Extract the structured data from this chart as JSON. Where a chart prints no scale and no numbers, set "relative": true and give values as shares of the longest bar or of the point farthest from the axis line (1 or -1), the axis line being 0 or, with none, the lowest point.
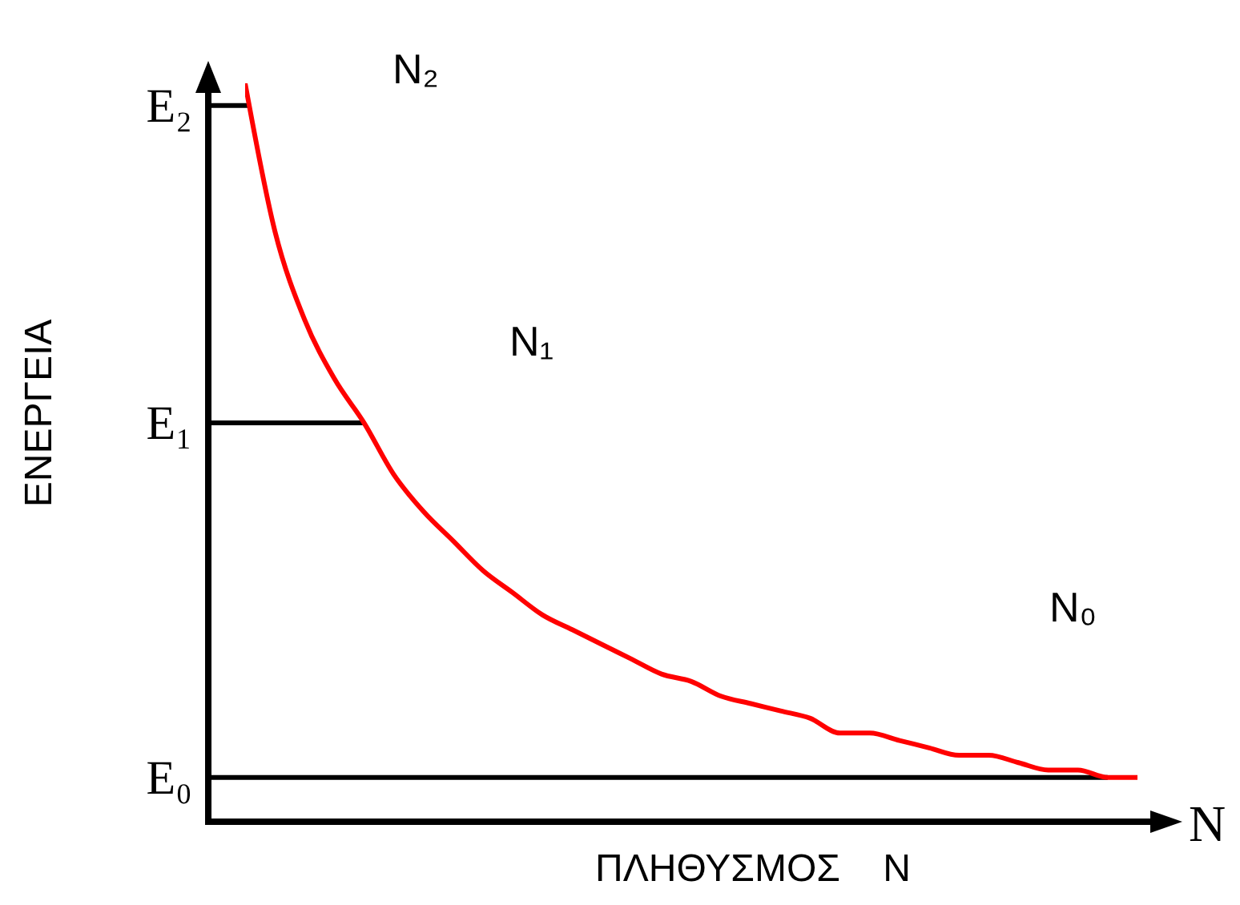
{
  "chart_data": {
    "type": "line",
    "relative": true,
    "xlabel": "ΠΛΗΘΥΣΜΟΣ    N",
    "ylabel": "ΕΝΕΡΓΕΙΑ",
    "categories": [
      null,
      null,
      null,
      null,
      null,
      null,
      null,
      null,
      null,
      null,
      null,
      null,
      null,
      null,
      null,
      null,
      null,
      null,
      null,
      null,
      null,
      null,
      null,
      null,
      null,
      null,
      null,
      null,
      null,
      null,
      null
    ],
    "series": [
      {
        "color": "#ff0000",
        "values": [
          1.0,
          0.8,
          0.68,
          0.6,
          0.54,
          0.47,
          0.42,
          0.38,
          0.34,
          0.31,
          0.28,
          0.26,
          0.24,
          0.22,
          0.2,
          0.19,
          0.17,
          0.16,
          0.15,
          0.14,
          0.12,
          0.12,
          0.11,
          0.1,
          0.09,
          0.09,
          0.08,
          0.07,
          0.07,
          0.06,
          0.06
        ]
      }
    ],
    "ref_lines": [
      {
        "axis": "y",
        "value": 0.97,
        "label": "E₂",
        "color": "#000000"
      },
      {
        "axis": "y",
        "value": 0.54,
        "label": "E₁",
        "color": "#000000"
      },
      {
        "axis": "y",
        "value": 0.06,
        "label": "E₀",
        "color": "#000000"
      }
    ],
    "annotations": [
      "N₂",
      "N₁",
      "N₀",
      "N"
    ]
  }
}
